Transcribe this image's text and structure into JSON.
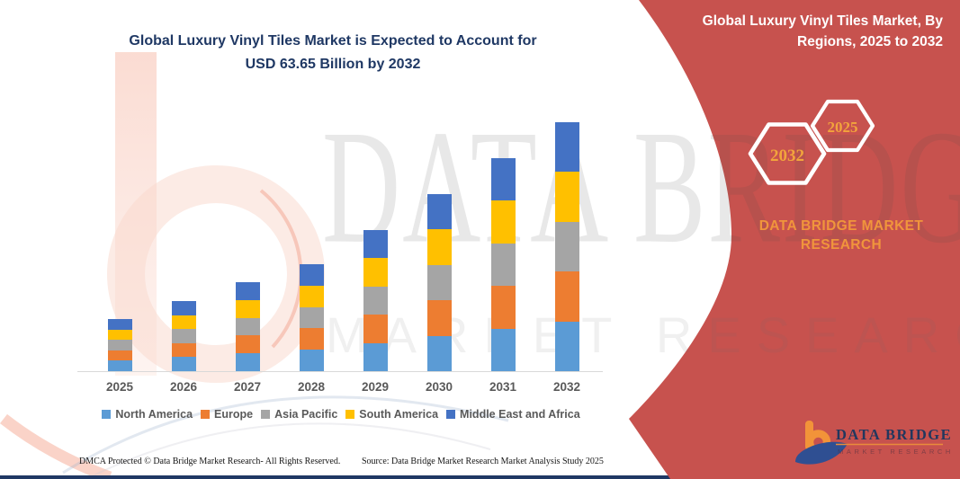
{
  "header": {
    "title_line1": "Global Luxury Vinyl Tiles Market is Expected to Account for",
    "title_line2": "USD 63.65 Billion by 2032"
  },
  "side_panel": {
    "title": "Global Luxury Vinyl Tiles Market, By Regions, 2025 to 2032",
    "hexagons": [
      {
        "label": "2032"
      },
      {
        "label": "2025"
      }
    ],
    "brand_line1": "DATA BRIDGE MARKET",
    "brand_line2": "RESEARCH",
    "logo": {
      "name": "DATA BRIDGE",
      "subtitle": "MARKET RESEARCH"
    }
  },
  "watermark": {
    "line1": "DATA BRIDGE",
    "line2": "MARKET RESEARCH"
  },
  "chart_data": {
    "type": "bar",
    "stacked": true,
    "title": "Global Luxury Vinyl Tiles Market is Expected to Account for USD 63.65 Billion by 2032",
    "unit": "USD Billion",
    "categories": [
      "2025",
      "2026",
      "2027",
      "2028",
      "2029",
      "2030",
      "2031",
      "2032"
    ],
    "series": [
      {
        "name": "North America",
        "color": "#5B9BD5",
        "values": [
          2.67,
          3.58,
          4.55,
          5.47,
          7.22,
          9.06,
          10.9,
          12.73
        ]
      },
      {
        "name": "Europe",
        "color": "#ED7D31",
        "values": [
          2.67,
          3.58,
          4.55,
          5.47,
          7.22,
          9.06,
          10.9,
          12.73
        ]
      },
      {
        "name": "Asia Pacific",
        "color": "#A5A5A5",
        "values": [
          2.67,
          3.58,
          4.55,
          5.47,
          7.22,
          9.06,
          10.9,
          12.73
        ]
      },
      {
        "name": "South America",
        "color": "#FFC000",
        "values": [
          2.67,
          3.58,
          4.55,
          5.47,
          7.22,
          9.06,
          10.9,
          12.73
        ]
      },
      {
        "name": "Middle East and Africa",
        "color": "#4472C4",
        "values": [
          2.67,
          3.58,
          4.55,
          5.47,
          7.22,
          9.06,
          10.9,
          12.73
        ]
      }
    ],
    "totals": [
      13.35,
      17.9,
      22.75,
      27.35,
      36.1,
      45.3,
      54.5,
      63.65
    ],
    "ylim": [
      0,
      63.65
    ],
    "xlabel": "",
    "ylabel": "",
    "grid": false,
    "legend_position": "bottom"
  },
  "footer": {
    "left": "DMCA Protected © Data Bridge Market Research-  All Rights Reserved.",
    "right": "Source: Data Bridge Market Research  Market Analysis Study 2025"
  },
  "colors": {
    "panel_red": "#C7524E",
    "accent_orange": "#F0953C",
    "hexagon_year_text": "#F2A43C",
    "title_navy": "#1F3864",
    "axis_label_gray": "#595959",
    "bottom_bar_navy": "#1F3864",
    "logo_navy": "#22375E"
  }
}
